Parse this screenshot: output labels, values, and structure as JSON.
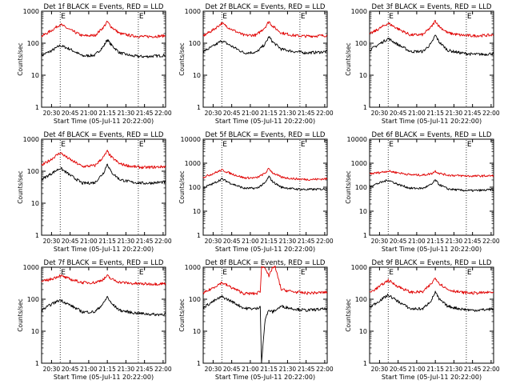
{
  "figure": {
    "colors": {
      "events": "#000000",
      "lld": "#e00000"
    },
    "xtick_labels": [
      "20:30",
      "20:45",
      "21:00",
      "21:15",
      "21:30",
      "21:45",
      "22:00"
    ],
    "ytick_labels_short": [
      "1",
      "10",
      "100",
      "1000"
    ],
    "ytick_labels_long": [
      "1",
      "10",
      "100",
      "1000",
      "10000"
    ],
    "ylabel": "Counts/sec",
    "xlabel": "Start Time (05-Jul-11 20:22:00)",
    "marker_letter": "E",
    "marker_letter_alt": "E'"
  },
  "chart_data": [
    {
      "type": "line",
      "title": "Det 1f BLACK = Events, RED = LLD",
      "xlabel": "Start Time (05-Jul-11 20:22:00)",
      "ylabel": "Counts/sec",
      "xlim": [
        "20:22",
        "22:02"
      ],
      "ylim": [
        1,
        1000
      ],
      "yscale": "log",
      "markers": [
        "20:37",
        "21:40"
      ],
      "marker_labels": [
        "E",
        "E"
      ],
      "series": [
        {
          "name": "Events",
          "color": "#000000",
          "x": [
            "20:22",
            "20:30",
            "20:37",
            "20:45",
            "20:55",
            "21:05",
            "21:12",
            "21:15",
            "21:18",
            "21:25",
            "21:35",
            "21:45",
            "21:55",
            "22:02"
          ],
          "y": [
            42,
            58,
            85,
            65,
            40,
            42,
            80,
            130,
            90,
            50,
            40,
            38,
            40,
            42
          ]
        },
        {
          "name": "LLD",
          "color": "#e00000",
          "x": [
            "20:22",
            "20:30",
            "20:37",
            "20:45",
            "20:55",
            "21:05",
            "21:12",
            "21:15",
            "21:18",
            "21:25",
            "21:35",
            "21:45",
            "21:55",
            "22:02"
          ],
          "y": [
            165,
            250,
            390,
            260,
            170,
            175,
            320,
            470,
            330,
            200,
            170,
            160,
            165,
            170
          ]
        }
      ]
    },
    {
      "type": "line",
      "title": "Det 2f BLACK = Events, RED = LLD",
      "xlabel": "Start Time (05-Jul-11 20:22:00)",
      "ylabel": "Counts/sec",
      "xlim": [
        "20:22",
        "22:02"
      ],
      "ylim": [
        1,
        1000
      ],
      "yscale": "log",
      "markers": [
        "20:37",
        "21:40"
      ],
      "marker_labels": [
        "E",
        "E"
      ],
      "series": [
        {
          "name": "Events",
          "color": "#000000",
          "x": [
            "20:22",
            "20:30",
            "20:37",
            "20:45",
            "20:55",
            "21:05",
            "21:12",
            "21:15",
            "21:18",
            "21:25",
            "21:35",
            "21:45",
            "21:55",
            "22:02"
          ],
          "y": [
            55,
            80,
            120,
            80,
            50,
            52,
            95,
            160,
            110,
            65,
            55,
            50,
            52,
            55
          ]
        },
        {
          "name": "LLD",
          "color": "#e00000",
          "x": [
            "20:22",
            "20:30",
            "20:37",
            "20:45",
            "20:55",
            "21:05",
            "21:12",
            "21:15",
            "21:18",
            "21:25",
            "21:35",
            "21:45",
            "21:55",
            "22:02"
          ],
          "y": [
            170,
            260,
            420,
            270,
            175,
            180,
            320,
            480,
            340,
            210,
            175,
            165,
            170,
            175
          ]
        }
      ]
    },
    {
      "type": "line",
      "title": "Det 3f BLACK = Events, RED = LLD",
      "xlabel": "Start Time (05-Jul-11 20:22:00)",
      "ylabel": "Counts/sec",
      "xlim": [
        "20:22",
        "22:02"
      ],
      "ylim": [
        1,
        1000
      ],
      "yscale": "log",
      "markers": [
        "20:37",
        "21:40"
      ],
      "marker_labels": [
        "E",
        "E"
      ],
      "series": [
        {
          "name": "Events",
          "color": "#000000",
          "x": [
            "20:22",
            "20:30",
            "20:37",
            "20:45",
            "20:55",
            "21:05",
            "21:12",
            "21:15",
            "21:18",
            "21:25",
            "21:35",
            "21:45",
            "21:55",
            "22:02"
          ],
          "y": [
            60,
            95,
            140,
            90,
            55,
            55,
            100,
            180,
            110,
            60,
            50,
            45,
            45,
            48
          ]
        },
        {
          "name": "LLD",
          "color": "#e00000",
          "x": [
            "20:22",
            "20:30",
            "20:37",
            "20:45",
            "20:55",
            "21:05",
            "21:12",
            "21:15",
            "21:18",
            "21:25",
            "21:35",
            "21:45",
            "21:55",
            "22:02"
          ],
          "y": [
            190,
            290,
            420,
            280,
            180,
            185,
            330,
            500,
            340,
            210,
            180,
            170,
            175,
            180
          ]
        }
      ]
    },
    {
      "type": "line",
      "title": "Det 4f BLACK = Events, RED = LLD",
      "xlabel": "Start Time (05-Jul-11 20:22:00)",
      "ylabel": "Counts/sec",
      "xlim": [
        "20:22",
        "22:02"
      ],
      "ylim": [
        1,
        1000
      ],
      "yscale": "log",
      "markers": [
        "20:37",
        "21:40"
      ],
      "marker_labels": [
        "E",
        "E"
      ],
      "series": [
        {
          "name": "Events",
          "color": "#000000",
          "x": [
            "20:22",
            "20:30",
            "20:37",
            "20:45",
            "20:55",
            "21:05",
            "21:12",
            "21:15",
            "21:18",
            "21:25",
            "21:35",
            "21:45",
            "21:55",
            "22:02"
          ],
          "y": [
            55,
            85,
            125,
            75,
            42,
            44,
            90,
            170,
            95,
            55,
            45,
            42,
            44,
            46
          ]
        },
        {
          "name": "LLD",
          "color": "#e00000",
          "x": [
            "20:22",
            "20:30",
            "20:37",
            "20:45",
            "20:55",
            "21:05",
            "21:12",
            "21:15",
            "21:18",
            "21:25",
            "21:35",
            "21:45",
            "21:55",
            "22:02"
          ],
          "y": [
            150,
            240,
            380,
            230,
            140,
            150,
            280,
            420,
            280,
            170,
            140,
            130,
            135,
            140
          ]
        }
      ]
    },
    {
      "type": "line",
      "title": "Det 5f BLACK = Events, RED = LLD",
      "xlabel": "Start Time (05-Jul-11 20:22:00)",
      "ylabel": "Counts/sec",
      "xlim": [
        "20:22",
        "22:02"
      ],
      "ylim": [
        1,
        10000
      ],
      "yscale": "log",
      "markers": [
        "20:37",
        "21:40"
      ],
      "marker_labels": [
        "E",
        "E"
      ],
      "series": [
        {
          "name": "Events",
          "color": "#000000",
          "x": [
            "20:22",
            "20:30",
            "20:37",
            "20:45",
            "20:55",
            "21:05",
            "21:12",
            "21:15",
            "21:18",
            "21:25",
            "21:35",
            "21:45",
            "21:55",
            "22:02"
          ],
          "y": [
            95,
            140,
            220,
            140,
            90,
            90,
            150,
            280,
            170,
            100,
            85,
            80,
            82,
            85
          ]
        },
        {
          "name": "LLD",
          "color": "#e00000",
          "x": [
            "20:22",
            "20:30",
            "20:37",
            "20:45",
            "20:55",
            "21:05",
            "21:12",
            "21:15",
            "21:18",
            "21:25",
            "21:35",
            "21:45",
            "21:55",
            "22:02"
          ],
          "y": [
            260,
            370,
            520,
            360,
            245,
            245,
            380,
            600,
            400,
            260,
            225,
            210,
            215,
            225
          ]
        }
      ]
    },
    {
      "type": "line",
      "title": "Det 6f BLACK = Events, RED = LLD",
      "xlabel": "Start Time (05-Jul-11 20:22:00)",
      "ylabel": "Counts/sec",
      "xlim": [
        "20:22",
        "22:02"
      ],
      "ylim": [
        1,
        10000
      ],
      "yscale": "log",
      "markers": [
        "20:37",
        "21:40"
      ],
      "marker_labels": [
        "E",
        "E"
      ],
      "series": [
        {
          "name": "Events",
          "color": "#000000",
          "x": [
            "20:22",
            "20:30",
            "20:37",
            "20:45",
            "20:55",
            "21:05",
            "21:12",
            "21:15",
            "21:18",
            "21:25",
            "21:35",
            "21:45",
            "21:55",
            "22:02"
          ],
          "y": [
            110,
            150,
            200,
            130,
            90,
            90,
            130,
            200,
            130,
            85,
            75,
            72,
            75,
            80
          ]
        },
        {
          "name": "LLD",
          "color": "#e00000",
          "x": [
            "20:22",
            "20:30",
            "20:37",
            "20:45",
            "20:55",
            "21:05",
            "21:12",
            "21:15",
            "21:18",
            "21:25",
            "21:35",
            "21:45",
            "21:55",
            "22:02"
          ],
          "y": [
            360,
            410,
            470,
            400,
            330,
            320,
            370,
            470,
            380,
            320,
            300,
            290,
            295,
            300
          ]
        }
      ]
    },
    {
      "type": "line",
      "title": "Det 7f BLACK = Events, RED = LLD",
      "xlabel": "Start Time (05-Jul-11 20:22:00)",
      "ylabel": "Counts/sec",
      "xlim": [
        "20:22",
        "22:02"
      ],
      "ylim": [
        1,
        1000
      ],
      "yscale": "log",
      "markers": [
        "20:37",
        "21:40"
      ],
      "marker_labels": [
        "E",
        "E"
      ],
      "series": [
        {
          "name": "Events",
          "color": "#000000",
          "x": [
            "20:22",
            "20:30",
            "20:37",
            "20:45",
            "20:55",
            "21:05",
            "21:12",
            "21:15",
            "21:18",
            "21:25",
            "21:35",
            "21:45",
            "21:55",
            "22:02"
          ],
          "y": [
            45,
            70,
            95,
            65,
            40,
            40,
            75,
            120,
            75,
            45,
            38,
            35,
            33,
            35
          ]
        },
        {
          "name": "LLD",
          "color": "#e00000",
          "x": [
            "20:22",
            "20:30",
            "20:37",
            "20:45",
            "20:55",
            "21:05",
            "21:12",
            "21:15",
            "21:18",
            "21:25",
            "21:35",
            "21:45",
            "21:55",
            "22:02"
          ],
          "y": [
            350,
            430,
            550,
            420,
            330,
            330,
            420,
            540,
            430,
            340,
            310,
            300,
            300,
            310
          ]
        }
      ]
    },
    {
      "type": "line",
      "title": "Det 8f BLACK = Events, RED = LLD",
      "xlabel": "Start Time (05-Jul-11 20:22:00)",
      "ylabel": "Counts/sec",
      "xlim": [
        "20:22",
        "22:02"
      ],
      "ylim": [
        1,
        1000
      ],
      "yscale": "log",
      "markers": [
        "20:37",
        "21:40"
      ],
      "marker_labels": [
        "E",
        "E"
      ],
      "series": [
        {
          "name": "Events",
          "color": "#000000",
          "x": [
            "20:22",
            "20:30",
            "20:37",
            "20:45",
            "20:55",
            "21:05",
            "21:08",
            "21:09",
            "21:12",
            "21:15",
            "21:18",
            "21:25",
            "21:35",
            "21:45",
            "21:55",
            "22:02"
          ],
          "y": [
            55,
            85,
            120,
            85,
            52,
            50,
            60,
            1,
            25,
            45,
            40,
            60,
            50,
            45,
            48,
            50
          ]
        },
        {
          "name": "LLD",
          "color": "#e00000",
          "x": [
            "20:22",
            "20:30",
            "20:37",
            "20:45",
            "20:55",
            "21:05",
            "21:08",
            "21:09",
            "21:12",
            "21:15",
            "21:18",
            "21:20",
            "21:25",
            "21:35",
            "21:45",
            "21:55",
            "22:02"
          ],
          "y": [
            150,
            230,
            330,
            230,
            150,
            150,
            180,
            1000,
            1000,
            500,
            1000,
            1000,
            200,
            170,
            155,
            160,
            165
          ]
        }
      ]
    },
    {
      "type": "line",
      "title": "Det 9f BLACK = Events, RED = LLD",
      "xlabel": "Start Time (05-Jul-11 20:22:00)",
      "ylabel": "Counts/sec",
      "xlim": [
        "20:22",
        "22:02"
      ],
      "ylim": [
        1,
        1000
      ],
      "yscale": "log",
      "markers": [
        "20:37",
        "21:40"
      ],
      "marker_labels": [
        "E",
        "E"
      ],
      "series": [
        {
          "name": "Events",
          "color": "#000000",
          "x": [
            "20:22",
            "20:30",
            "20:37",
            "20:45",
            "20:55",
            "21:05",
            "21:12",
            "21:15",
            "21:18",
            "21:25",
            "21:35",
            "21:45",
            "21:55",
            "22:02"
          ],
          "y": [
            55,
            90,
            135,
            85,
            50,
            50,
            95,
            170,
            100,
            60,
            50,
            45,
            47,
            50
          ]
        },
        {
          "name": "LLD",
          "color": "#e00000",
          "x": [
            "20:22",
            "20:30",
            "20:37",
            "20:45",
            "20:55",
            "21:05",
            "21:12",
            "21:15",
            "21:18",
            "21:25",
            "21:35",
            "21:45",
            "21:55",
            "22:02"
          ],
          "y": [
            160,
            250,
            390,
            250,
            165,
            170,
            310,
            470,
            320,
            200,
            165,
            155,
            160,
            165
          ]
        }
      ]
    }
  ]
}
